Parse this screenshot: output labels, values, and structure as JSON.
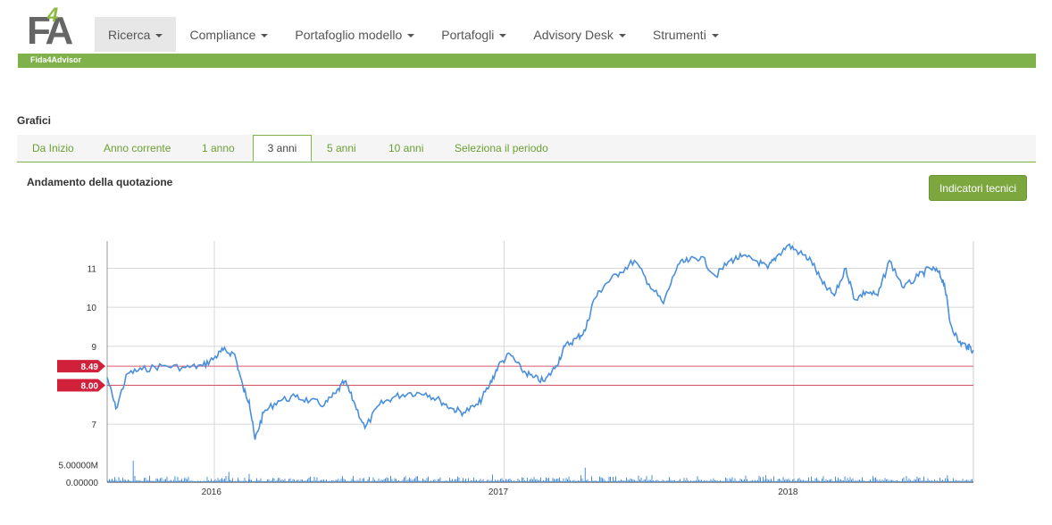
{
  "brand": {
    "logo_text": "FA",
    "logo_accent": "4",
    "name": "Fida4Advisor"
  },
  "nav": {
    "items": [
      {
        "label": "Ricerca",
        "active": true
      },
      {
        "label": "Compliance"
      },
      {
        "label": "Portafoglio modello"
      },
      {
        "label": "Portafogli"
      },
      {
        "label": "Advisory Desk"
      },
      {
        "label": "Strumenti"
      }
    ]
  },
  "section": {
    "title": "Grafici"
  },
  "tabs": [
    {
      "label": "Da Inizio"
    },
    {
      "label": "Anno corrente"
    },
    {
      "label": "1 anno"
    },
    {
      "label": "3 anni",
      "active": true
    },
    {
      "label": "5 anni"
    },
    {
      "label": "10 anni"
    },
    {
      "label": "Seleziona il periodo"
    }
  ],
  "chart_title": "Andamento della quotazione",
  "indicators_button": "Indicatori tecnici",
  "colors": {
    "accent": "#7fb24a",
    "line": "#4a8fdc",
    "marker": "#d0203a"
  },
  "chart_data": {
    "type": "line",
    "x_ticks": [
      "2016",
      "2017",
      "2018"
    ],
    "price": {
      "y_ticks": [
        7,
        8,
        9,
        10,
        11
      ],
      "ylim": [
        6.2,
        11.7
      ],
      "reference_lines": [
        {
          "label": "8.49",
          "value": 8.49
        },
        {
          "label": "8.00",
          "value": 8.0
        }
      ],
      "series": {
        "x_years": [
          2015.63,
          2015.66,
          2015.7,
          2015.75,
          2015.82,
          2015.9,
          2015.96,
          2016.0,
          2016.03,
          2016.07,
          2016.1,
          2016.12,
          2016.14,
          2016.17,
          2016.22,
          2016.28,
          2016.33,
          2016.38,
          2016.42,
          2016.45,
          2016.48,
          2016.52,
          2016.57,
          2016.62,
          2016.67,
          2016.73,
          2016.78,
          2016.82,
          2016.86,
          2016.91,
          2016.95,
          2016.98,
          2017.02,
          2017.06,
          2017.1,
          2017.14,
          2017.18,
          2017.21,
          2017.25,
          2017.28,
          2017.31,
          2017.35,
          2017.4,
          2017.45,
          2017.5,
          2017.55,
          2017.6,
          2017.64,
          2017.68,
          2017.73,
          2017.78,
          2017.82,
          2017.87,
          2017.91,
          2017.94,
          2017.98,
          2018.02,
          2018.06,
          2018.1,
          2018.14,
          2018.18,
          2018.21,
          2018.25,
          2018.29,
          2018.33,
          2018.38,
          2018.43,
          2018.47,
          2018.5,
          2018.52,
          2018.54,
          2018.57,
          2018.6,
          2018.62
        ],
        "values": [
          8.2,
          7.4,
          8.3,
          8.4,
          8.5,
          8.45,
          8.5,
          8.7,
          8.9,
          8.8,
          7.9,
          7.6,
          6.6,
          7.3,
          7.6,
          7.7,
          7.6,
          7.5,
          7.8,
          8.1,
          7.6,
          6.9,
          7.5,
          7.7,
          7.8,
          7.8,
          7.6,
          7.4,
          7.3,
          7.5,
          8.0,
          8.5,
          8.8,
          8.4,
          8.2,
          8.1,
          8.5,
          9.0,
          9.2,
          9.4,
          10.2,
          10.6,
          10.9,
          11.2,
          10.6,
          10.1,
          11.1,
          11.2,
          11.3,
          10.8,
          11.2,
          11.3,
          11.2,
          11.0,
          11.3,
          11.6,
          11.4,
          11.2,
          10.6,
          10.3,
          11.0,
          10.2,
          10.4,
          10.3,
          11.2,
          10.5,
          10.8,
          11.0,
          10.9,
          10.6,
          9.6,
          9.1,
          9.0,
          8.9
        ]
      }
    },
    "volume": {
      "y_ticks": [
        "0.00000",
        "5.00000M"
      ],
      "ylim": [
        0,
        7000000
      ],
      "spikes": [
        {
          "x_year": 2015.72,
          "value": 6200000
        },
        {
          "x_year": 2016.05,
          "value": 3000000
        },
        {
          "x_year": 2016.12,
          "value": 2400000
        },
        {
          "x_year": 2017.28,
          "value": 4200000
        },
        {
          "x_year": 2016.96,
          "value": 2200000
        },
        {
          "x_year": 2018.53,
          "value": 2000000
        }
      ]
    }
  }
}
